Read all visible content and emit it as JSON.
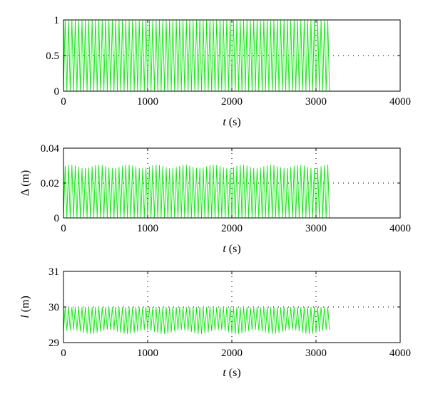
{
  "chart_data": [
    {
      "type": "line",
      "xlabel_var": "t",
      "xlabel_unit": " (s)",
      "ylabel_var": "",
      "ylabel_unit": "",
      "xlim": [
        0,
        4000
      ],
      "ylim": [
        0,
        1
      ],
      "xticks": [
        0,
        1000,
        2000,
        3000,
        4000
      ],
      "xtick_labels": [
        "0",
        "1000",
        "2000",
        "3000",
        "4000"
      ],
      "yticks": [
        0,
        0.5,
        1
      ],
      "ytick_labels": [
        "0",
        "0.5",
        "1"
      ],
      "grid": true,
      "series": [
        {
          "color": "#00ee00",
          "t_end": 3160,
          "period": 40,
          "low": 0,
          "high": 1,
          "pattern": "oscillation"
        }
      ]
    },
    {
      "type": "line",
      "xlabel_var": "t",
      "xlabel_unit": " (s)",
      "ylabel_var": "Δ",
      "ylabel_unit": " (m)",
      "xlim": [
        0,
        4000
      ],
      "ylim": [
        0,
        0.04
      ],
      "xticks": [
        0,
        1000,
        2000,
        3000,
        4000
      ],
      "xtick_labels": [
        "0",
        "1000",
        "2000",
        "3000",
        "4000"
      ],
      "yticks": [
        0,
        0.02,
        0.04
      ],
      "ytick_labels": [
        "0",
        "0.02",
        "0.04"
      ],
      "grid": true,
      "series": [
        {
          "color": "#00ee00",
          "t_end": 3160,
          "period": 40,
          "low": 0,
          "high": 0.0295,
          "high_variation": 0.001,
          "pattern": "oscillation"
        }
      ]
    },
    {
      "type": "line",
      "xlabel_var": "t",
      "xlabel_unit": " (s)",
      "ylabel_var": "l",
      "ylabel_unit": " (m)",
      "xlim": [
        0,
        4000
      ],
      "ylim": [
        29,
        31
      ],
      "xticks": [
        0,
        1000,
        2000,
        3000,
        4000
      ],
      "xtick_labels": [
        "0",
        "1000",
        "2000",
        "3000",
        "4000"
      ],
      "yticks": [
        29,
        30,
        31
      ],
      "ytick_labels": [
        "29",
        "30",
        "31"
      ],
      "grid": true,
      "series": [
        {
          "color": "#00ee00",
          "t_end": 3160,
          "period": 40,
          "low": 29.3,
          "low_variation": 0.06,
          "high": 30.0,
          "pattern": "oscillation"
        }
      ]
    }
  ]
}
